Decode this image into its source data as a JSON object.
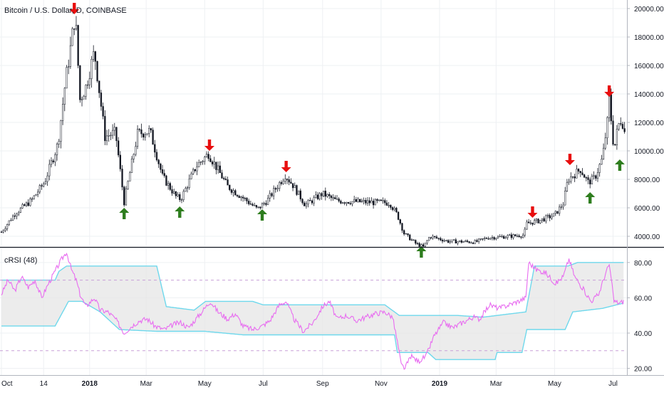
{
  "header": {
    "symbol_title": "Bitcoin / U.S. Dollar, D, COINBASE",
    "indicator_title": "cRSI (48)"
  },
  "colors": {
    "background": "#ffffff",
    "grid": "#eef0f3",
    "candles": "#131722",
    "arrow_sell": "#e80e0e",
    "arrow_buy": "#2e7d1e",
    "crsi_line": "#e86cf0",
    "band_line": "#6ed8ec",
    "band_fill": "#e6e6e6",
    "level_line": "#c8a0d8",
    "axis_text": "#131722",
    "divider": "#131722"
  },
  "chart_data": [
    {
      "type": "candlestick",
      "title": "Bitcoin / U.S. Dollar, D, COINBASE",
      "x_tick_labels": [
        "Oct",
        "14",
        "2018",
        "Mar",
        "May",
        "Jul",
        "Sep",
        "Nov",
        "2019",
        "Mar",
        "May",
        "Jul"
      ],
      "y_tick_labels": [
        "4000.00",
        "6000.00",
        "8000.00",
        "10000.00",
        "12000.00",
        "14000.00",
        "16000.00",
        "18000.00",
        "20000.00"
      ],
      "y_ticks": [
        4000,
        6000,
        8000,
        10000,
        12000,
        14000,
        16000,
        18000,
        20000
      ],
      "ylim": [
        3300,
        20600
      ],
      "grid": true,
      "x_range": [
        "2017-10-01",
        "2019-07-14"
      ],
      "price_path": [
        [
          "2017-10-01",
          4300
        ],
        [
          "2017-10-15",
          5600
        ],
        [
          "2017-11-01",
          6500
        ],
        [
          "2017-11-15",
          7800
        ],
        [
          "2017-11-29",
          10500
        ],
        [
          "2017-12-07",
          15000
        ],
        [
          "2017-12-12",
          17200
        ],
        [
          "2017-12-17",
          19600
        ],
        [
          "2017-12-22",
          13600
        ],
        [
          "2017-12-28",
          14500
        ],
        [
          "2018-01-06",
          17000
        ],
        [
          "2018-01-17",
          11000
        ],
        [
          "2018-01-28",
          11300
        ],
        [
          "2018-02-06",
          6400
        ],
        [
          "2018-02-20",
          11200
        ],
        [
          "2018-03-05",
          11400
        ],
        [
          "2018-03-18",
          8200
        ],
        [
          "2018-04-01",
          6800
        ],
        [
          "2018-04-06",
          6600
        ],
        [
          "2018-04-22",
          8900
        ],
        [
          "2018-05-05",
          9800
        ],
        [
          "2018-05-25",
          7500
        ],
        [
          "2018-06-12",
          6600
        ],
        [
          "2018-06-25",
          5900
        ],
        [
          "2018-07-05",
          6500
        ],
        [
          "2018-07-24",
          8300
        ],
        [
          "2018-08-01",
          7600
        ],
        [
          "2018-08-14",
          6200
        ],
        [
          "2018-09-01",
          7000
        ],
        [
          "2018-09-15",
          6500
        ],
        [
          "2018-10-15",
          6400
        ],
        [
          "2018-11-10",
          6350
        ],
        [
          "2018-11-18",
          5500
        ],
        [
          "2018-11-25",
          4200
        ],
        [
          "2018-12-07",
          3500
        ],
        [
          "2018-12-15",
          3250
        ],
        [
          "2018-12-22",
          4000
        ],
        [
          "2019-01-10",
          3650
        ],
        [
          "2019-02-08",
          3600
        ],
        [
          "2019-02-20",
          3900
        ],
        [
          "2019-03-15",
          4000
        ],
        [
          "2019-03-30",
          4100
        ],
        [
          "2019-04-02",
          4900
        ],
        [
          "2019-04-15",
          5100
        ],
        [
          "2019-05-01",
          5500
        ],
        [
          "2019-05-10",
          6300
        ],
        [
          "2019-05-15",
          8000
        ],
        [
          "2019-05-28",
          8700
        ],
        [
          "2019-06-05",
          7800
        ],
        [
          "2019-06-12",
          8100
        ],
        [
          "2019-06-20",
          9500
        ],
        [
          "2019-06-26",
          12500
        ],
        [
          "2019-06-27",
          13700
        ],
        [
          "2019-07-02",
          10000
        ],
        [
          "2019-07-06",
          11700
        ],
        [
          "2019-07-10",
          12300
        ],
        [
          "2019-07-14",
          11000
        ]
      ],
      "annotations": [
        {
          "kind": "sell",
          "date": "2017-12-16",
          "price": 20000
        },
        {
          "kind": "buy",
          "date": "2018-02-06",
          "price": 5600
        },
        {
          "kind": "buy",
          "date": "2018-04-05",
          "price": 5700
        },
        {
          "kind": "sell",
          "date": "2018-05-06",
          "price": 10400
        },
        {
          "kind": "buy",
          "date": "2018-06-30",
          "price": 5500
        },
        {
          "kind": "sell",
          "date": "2018-07-25",
          "price": 8900
        },
        {
          "kind": "buy",
          "date": "2018-12-13",
          "price": 2900
        },
        {
          "kind": "sell",
          "date": "2019-04-08",
          "price": 5700
        },
        {
          "kind": "sell",
          "date": "2019-05-17",
          "price": 9400
        },
        {
          "kind": "buy",
          "date": "2019-06-07",
          "price": 6700
        },
        {
          "kind": "sell",
          "date": "2019-06-27",
          "price": 14200
        },
        {
          "kind": "buy",
          "date": "2019-07-08",
          "price": 9000
        }
      ]
    },
    {
      "type": "line",
      "title": "cRSI (48)",
      "series": [
        {
          "name": "cRSI (48)",
          "values": [
            [
              "2017-10-01",
              62
            ],
            [
              "2017-10-08",
              70
            ],
            [
              "2017-10-15",
              64
            ],
            [
              "2017-10-22",
              72
            ],
            [
              "2017-10-29",
              66
            ],
            [
              "2017-11-05",
              70
            ],
            [
              "2017-11-12",
              60
            ],
            [
              "2017-11-19",
              68
            ],
            [
              "2017-11-26",
              75
            ],
            [
              "2017-12-03",
              82
            ],
            [
              "2017-12-08",
              86
            ],
            [
              "2017-12-13",
              76
            ],
            [
              "2017-12-18",
              70
            ],
            [
              "2017-12-22",
              62
            ],
            [
              "2017-12-28",
              55
            ],
            [
              "2018-01-06",
              60
            ],
            [
              "2018-01-12",
              53
            ],
            [
              "2018-01-20",
              52
            ],
            [
              "2018-01-28",
              48
            ],
            [
              "2018-02-06",
              40
            ],
            [
              "2018-02-14",
              44
            ],
            [
              "2018-02-22",
              47
            ],
            [
              "2018-03-02",
              48
            ],
            [
              "2018-03-10",
              44
            ],
            [
              "2018-03-20",
              42
            ],
            [
              "2018-03-30",
              45
            ],
            [
              "2018-04-06",
              46
            ],
            [
              "2018-04-14",
              43
            ],
            [
              "2018-04-22",
              48
            ],
            [
              "2018-05-01",
              54
            ],
            [
              "2018-05-07",
              58
            ],
            [
              "2018-05-15",
              52
            ],
            [
              "2018-05-25",
              48
            ],
            [
              "2018-06-02",
              51
            ],
            [
              "2018-06-10",
              44
            ],
            [
              "2018-06-20",
              42
            ],
            [
              "2018-06-30",
              44
            ],
            [
              "2018-07-08",
              47
            ],
            [
              "2018-07-18",
              56
            ],
            [
              "2018-07-25",
              58
            ],
            [
              "2018-08-02",
              48
            ],
            [
              "2018-08-12",
              41
            ],
            [
              "2018-08-22",
              46
            ],
            [
              "2018-09-01",
              55
            ],
            [
              "2018-09-08",
              58
            ],
            [
              "2018-09-16",
              48
            ],
            [
              "2018-09-26",
              50
            ],
            [
              "2018-10-06",
              47
            ],
            [
              "2018-10-16",
              49
            ],
            [
              "2018-10-26",
              51
            ],
            [
              "2018-11-05",
              52
            ],
            [
              "2018-11-13",
              49
            ],
            [
              "2018-11-18",
              35
            ],
            [
              "2018-11-22",
              22
            ],
            [
              "2018-11-26",
              20
            ],
            [
              "2018-12-02",
              27
            ],
            [
              "2018-12-10",
              24
            ],
            [
              "2018-12-18",
              27
            ],
            [
              "2018-12-26",
              38
            ],
            [
              "2019-01-05",
              46
            ],
            [
              "2019-01-15",
              43
            ],
            [
              "2019-01-25",
              46
            ],
            [
              "2019-02-05",
              49
            ],
            [
              "2019-02-12",
              48
            ],
            [
              "2019-02-22",
              56
            ],
            [
              "2019-03-04",
              54
            ],
            [
              "2019-03-14",
              56
            ],
            [
              "2019-03-24",
              58
            ],
            [
              "2019-04-01",
              60
            ],
            [
              "2019-04-04",
              80
            ],
            [
              "2019-04-12",
              76
            ],
            [
              "2019-04-22",
              74
            ],
            [
              "2019-05-02",
              68
            ],
            [
              "2019-05-10",
              72
            ],
            [
              "2019-05-16",
              82
            ],
            [
              "2019-05-22",
              72
            ],
            [
              "2019-06-01",
              64
            ],
            [
              "2019-06-08",
              58
            ],
            [
              "2019-06-16",
              62
            ],
            [
              "2019-06-22",
              72
            ],
            [
              "2019-06-27",
              79
            ],
            [
              "2019-07-02",
              58
            ],
            [
              "2019-07-08",
              57
            ],
            [
              "2019-07-12",
              58
            ]
          ]
        },
        {
          "name": "upper band",
          "values": [
            [
              "2017-10-01",
              70
            ],
            [
              "2017-11-26",
              70
            ],
            [
              "2017-11-30",
              75
            ],
            [
              "2017-12-08",
              78
            ],
            [
              "2018-03-12",
              78
            ],
            [
              "2018-03-22",
              55
            ],
            [
              "2018-04-20",
              53
            ],
            [
              "2018-05-02",
              58
            ],
            [
              "2018-06-20",
              58
            ],
            [
              "2018-07-01",
              56
            ],
            [
              "2018-11-05",
              56
            ],
            [
              "2018-11-20",
              50
            ],
            [
              "2019-01-20",
              50
            ],
            [
              "2019-02-15",
              49
            ],
            [
              "2019-04-01",
              52
            ],
            [
              "2019-04-10",
              78
            ],
            [
              "2019-05-15",
              78
            ],
            [
              "2019-05-25",
              80
            ],
            [
              "2019-07-12",
              80
            ]
          ]
        },
        {
          "name": "lower band",
          "values": [
            [
              "2017-10-01",
              44
            ],
            [
              "2017-11-26",
              44
            ],
            [
              "2017-12-10",
              58
            ],
            [
              "2017-12-24",
              58
            ],
            [
              "2018-01-12",
              52
            ],
            [
              "2018-02-01",
              42
            ],
            [
              "2018-03-12",
              41
            ],
            [
              "2018-05-01",
              41
            ],
            [
              "2018-06-10",
              39
            ],
            [
              "2018-11-15",
              39
            ],
            [
              "2018-11-18",
              29
            ],
            [
              "2018-12-20",
              29
            ],
            [
              "2018-12-28",
              25
            ],
            [
              "2019-02-28",
              25
            ],
            [
              "2019-03-02",
              29
            ],
            [
              "2019-03-28",
              29
            ],
            [
              "2019-04-02",
              42
            ],
            [
              "2019-05-12",
              42
            ],
            [
              "2019-05-20",
              52
            ],
            [
              "2019-06-20",
              54
            ],
            [
              "2019-07-12",
              57
            ]
          ]
        }
      ],
      "reference_lines": [
        70,
        30
      ],
      "y_tick_labels": [
        "80.00",
        "60.00",
        "40.00",
        "20.00"
      ],
      "y_ticks": [
        80,
        60,
        40,
        20
      ],
      "ylim": [
        17,
        88
      ],
      "grid": true
    }
  ]
}
